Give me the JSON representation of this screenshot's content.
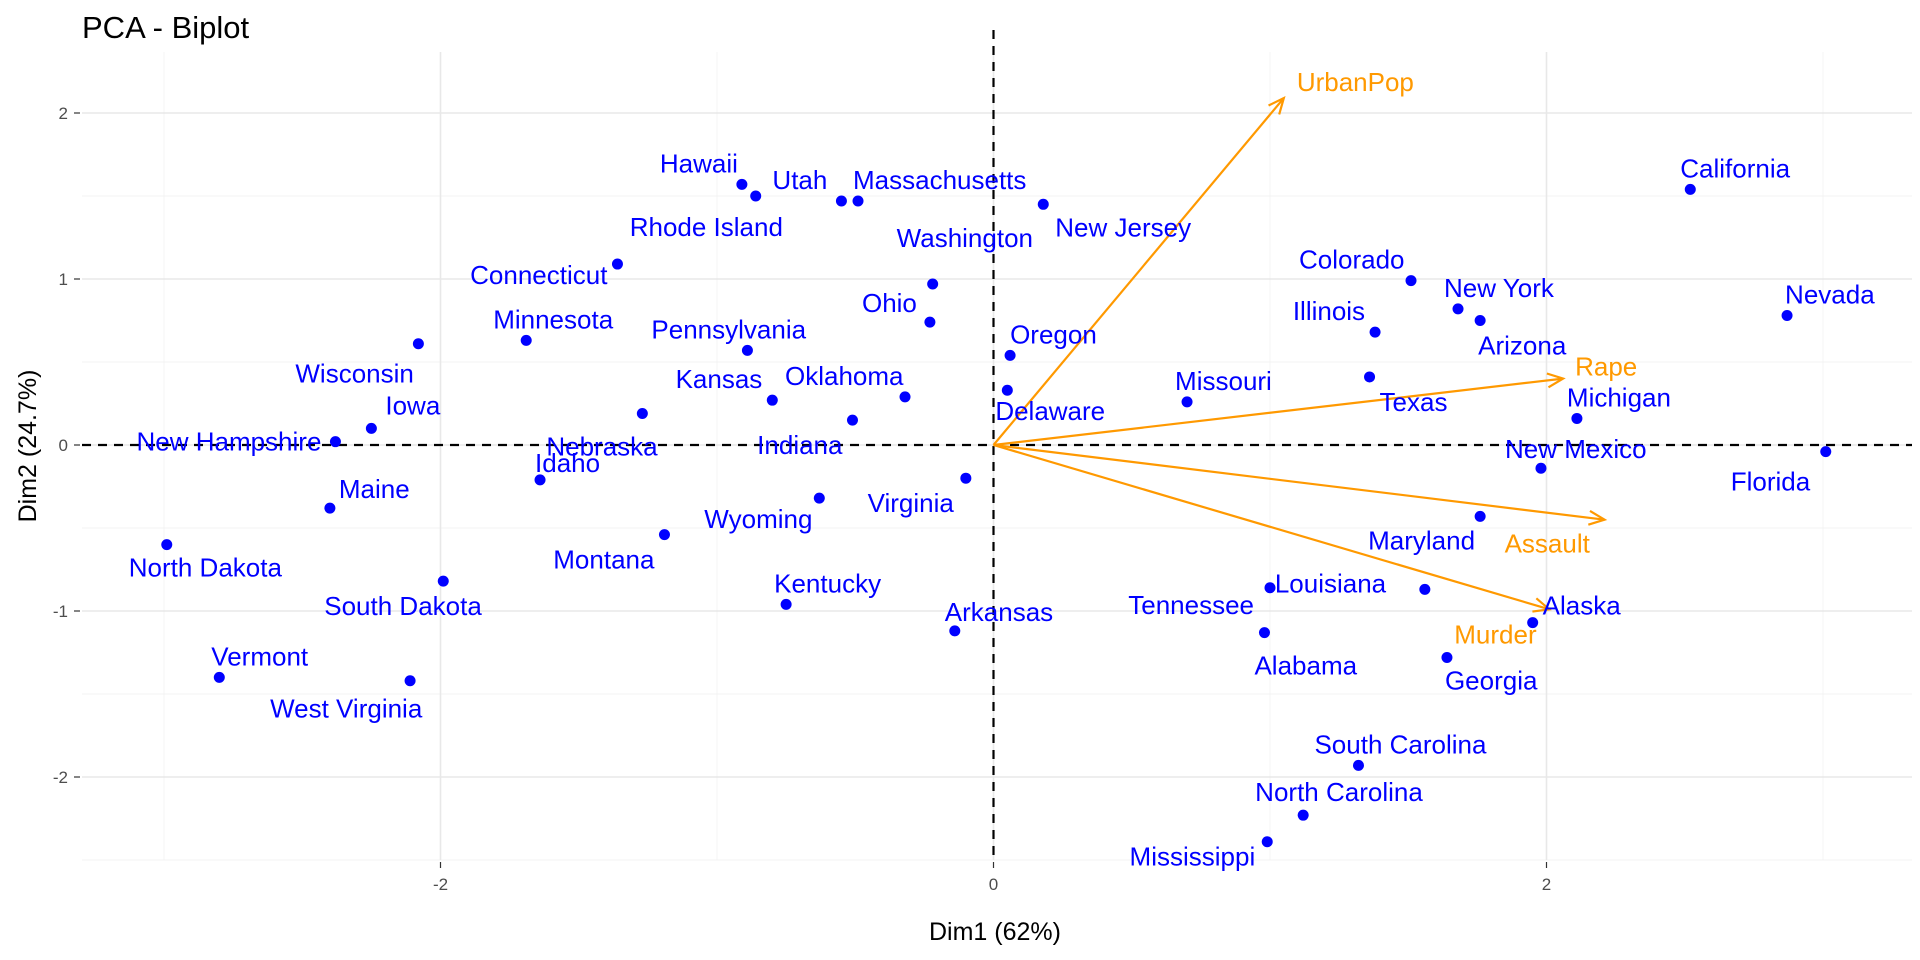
{
  "chart_data": {
    "type": "scatter",
    "title": "PCA - Biplot",
    "xlabel": "Dim1 (62%)",
    "ylabel": "Dim2 (24.7%)",
    "xlim": [
      -3.3,
      3.3
    ],
    "ylim": [
      -2.5,
      2.3
    ],
    "x_ticks": [
      -2,
      0,
      2
    ],
    "y_ticks": [
      2,
      1,
      0,
      -1,
      -2
    ],
    "tick_labels_x": [
      "-2",
      "0",
      "2"
    ],
    "tick_labels_y": [
      "2",
      "1",
      "0",
      "-1",
      "-2"
    ],
    "grid": true,
    "reference_lines": {
      "x": 0,
      "y": 0,
      "style": "dashed"
    },
    "point_color": "#0000ff",
    "arrow_color": "#ff9900",
    "individuals": [
      {
        "label": "Alabama",
        "x": 0.98,
        "y": -1.13
      },
      {
        "label": "Alaska",
        "x": 1.95,
        "y": -1.07
      },
      {
        "label": "Arizona",
        "x": 1.76,
        "y": 0.75
      },
      {
        "label": "Arkansas",
        "x": -0.14,
        "y": -1.12
      },
      {
        "label": "California",
        "x": 2.52,
        "y": 1.54
      },
      {
        "label": "Colorado",
        "x": 1.51,
        "y": 0.99
      },
      {
        "label": "Connecticut",
        "x": -1.36,
        "y": 1.09
      },
      {
        "label": "Delaware",
        "x": 0.05,
        "y": 0.33
      },
      {
        "label": "Florida",
        "x": 3.01,
        "y": -0.04
      },
      {
        "label": "Georgia",
        "x": 1.64,
        "y": -1.28
      },
      {
        "label": "Hawaii",
        "x": -0.91,
        "y": 1.57
      },
      {
        "label": "Idaho",
        "x": -1.64,
        "y": -0.21
      },
      {
        "label": "Illinois",
        "x": 1.38,
        "y": 0.68
      },
      {
        "label": "Indiana",
        "x": -0.51,
        "y": 0.15
      },
      {
        "label": "Iowa",
        "x": -2.25,
        "y": 0.1
      },
      {
        "label": "Kansas",
        "x": -0.8,
        "y": 0.27
      },
      {
        "label": "Kentucky",
        "x": -0.75,
        "y": -0.96
      },
      {
        "label": "Louisiana",
        "x": 1.56,
        "y": -0.87
      },
      {
        "label": "Maine",
        "x": -2.4,
        "y": -0.38
      },
      {
        "label": "Maryland",
        "x": 1.76,
        "y": -0.43
      },
      {
        "label": "Massachusetts",
        "x": -0.49,
        "y": 1.47
      },
      {
        "label": "Michigan",
        "x": 2.11,
        "y": 0.16
      },
      {
        "label": "Minnesota",
        "x": -1.69,
        "y": 0.63
      },
      {
        "label": "Mississippi",
        "x": 0.99,
        "y": -2.39
      },
      {
        "label": "Missouri",
        "x": 0.7,
        "y": 0.26
      },
      {
        "label": "Montana",
        "x": -1.19,
        "y": -0.54
      },
      {
        "label": "Nebraska",
        "x": -1.27,
        "y": 0.19
      },
      {
        "label": "Nevada",
        "x": 2.87,
        "y": 0.78
      },
      {
        "label": "New Hampshire",
        "x": -2.38,
        "y": 0.02
      },
      {
        "label": "New Jersey",
        "x": 0.18,
        "y": 1.45
      },
      {
        "label": "New Mexico",
        "x": 1.98,
        "y": -0.14
      },
      {
        "label": "New York",
        "x": 1.68,
        "y": 0.82
      },
      {
        "label": "North Carolina",
        "x": 1.12,
        "y": -2.23
      },
      {
        "label": "North Dakota",
        "x": -2.99,
        "y": -0.6
      },
      {
        "label": "Ohio",
        "x": -0.23,
        "y": 0.74
      },
      {
        "label": "Oklahoma",
        "x": -0.32,
        "y": 0.29
      },
      {
        "label": "Oregon",
        "x": 0.06,
        "y": 0.54
      },
      {
        "label": "Pennsylvania",
        "x": -0.89,
        "y": 0.57
      },
      {
        "label": "Rhode Island",
        "x": -0.86,
        "y": 1.5
      },
      {
        "label": "South Carolina",
        "x": 1.32,
        "y": -1.93
      },
      {
        "label": "South Dakota",
        "x": -1.99,
        "y": -0.82
      },
      {
        "label": "Tennessee",
        "x": 1.0,
        "y": -0.86
      },
      {
        "label": "Texas",
        "x": 1.36,
        "y": 0.41
      },
      {
        "label": "Utah",
        "x": -0.55,
        "y": 1.47
      },
      {
        "label": "Vermont",
        "x": -2.8,
        "y": -1.4
      },
      {
        "label": "Virginia",
        "x": -0.1,
        "y": -0.2
      },
      {
        "label": "Washington",
        "x": -0.22,
        "y": 0.97
      },
      {
        "label": "West Virginia",
        "x": -2.11,
        "y": -1.42
      },
      {
        "label": "Wisconsin",
        "x": -2.08,
        "y": 0.61
      },
      {
        "label": "Wyoming",
        "x": -0.63,
        "y": -0.32
      }
    ],
    "variables": [
      {
        "label": "Murder",
        "x": 2.01,
        "y": -0.99
      },
      {
        "label": "Assault",
        "x": 2.21,
        "y": -0.45
      },
      {
        "label": "UrbanPop",
        "x": 1.05,
        "y": 2.09
      },
      {
        "label": "Rape",
        "x": 2.06,
        "y": 0.4
      }
    ]
  }
}
